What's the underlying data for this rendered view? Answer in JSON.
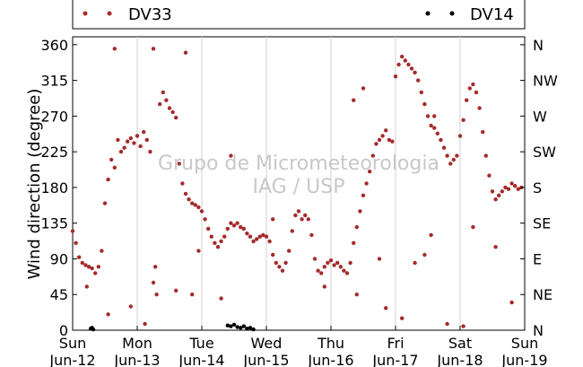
{
  "legend": {
    "placement": "top",
    "entries": [
      {
        "name": "DV33",
        "color": "#a52a2a"
      },
      {
        "name": "DV14",
        "color": "#000000"
      }
    ]
  },
  "watermark": {
    "line1": "Grupo de Micrometeorologia",
    "line2": "IAG / USP"
  },
  "chart_data": {
    "type": "scatter",
    "ylabel": "Wind direction (degree)",
    "ylim": [
      0,
      370
    ],
    "yticks": [
      0,
      45,
      90,
      135,
      180,
      225,
      270,
      315,
      360
    ],
    "right_ticks": [
      {
        "value": 0,
        "label": "N"
      },
      {
        "value": 45,
        "label": "NE"
      },
      {
        "value": 90,
        "label": "E"
      },
      {
        "value": 135,
        "label": "SE"
      },
      {
        "value": 180,
        "label": "S"
      },
      {
        "value": 225,
        "label": "SW"
      },
      {
        "value": 270,
        "label": "W"
      },
      {
        "value": 315,
        "label": "NW"
      },
      {
        "value": 360,
        "label": "N"
      }
    ],
    "xlim": [
      0,
      7
    ],
    "xticks": [
      {
        "value": 0,
        "day": "Sun",
        "date": "Jun-12"
      },
      {
        "value": 1,
        "day": "Mon",
        "date": "Jun-13"
      },
      {
        "value": 2,
        "day": "Tue",
        "date": "Jun-14"
      },
      {
        "value": 3,
        "day": "Wed",
        "date": "Jun-15"
      },
      {
        "value": 4,
        "day": "Thu",
        "date": "Jun-16"
      },
      {
        "value": 5,
        "day": "Fri",
        "date": "Jun-17"
      },
      {
        "value": 6,
        "day": "Sat",
        "date": "Jun-18"
      },
      {
        "value": 7,
        "day": "Sun",
        "date": "Jun-19"
      }
    ],
    "grid": "vertical",
    "series": [
      {
        "name": "DV33",
        "color": "#a52a2a",
        "values": [
          [
            0.0,
            125
          ],
          [
            0.05,
            110
          ],
          [
            0.1,
            92
          ],
          [
            0.15,
            85
          ],
          [
            0.2,
            82
          ],
          [
            0.25,
            80
          ],
          [
            0.3,
            78
          ],
          [
            0.35,
            72
          ],
          [
            0.4,
            80
          ],
          [
            0.45,
            100
          ],
          [
            0.5,
            160
          ],
          [
            0.55,
            190
          ],
          [
            0.6,
            215
          ],
          [
            0.65,
            205
          ],
          [
            0.7,
            240
          ],
          [
            0.75,
            225
          ],
          [
            0.8,
            230
          ],
          [
            0.85,
            238
          ],
          [
            0.9,
            242
          ],
          [
            0.95,
            236
          ],
          [
            1.0,
            245
          ],
          [
            1.05,
            232
          ],
          [
            1.1,
            250
          ],
          [
            1.15,
            240
          ],
          [
            1.2,
            225
          ],
          [
            1.25,
            60
          ],
          [
            1.3,
            45
          ],
          [
            1.35,
            285
          ],
          [
            1.4,
            300
          ],
          [
            1.45,
            290
          ],
          [
            1.5,
            280
          ],
          [
            1.55,
            275
          ],
          [
            1.6,
            268
          ],
          [
            1.65,
            210
          ],
          [
            1.7,
            185
          ],
          [
            1.75,
            172
          ],
          [
            1.8,
            165
          ],
          [
            1.85,
            160
          ],
          [
            1.9,
            158
          ],
          [
            1.95,
            155
          ],
          [
            2.0,
            150
          ],
          [
            2.05,
            140
          ],
          [
            2.1,
            128
          ],
          [
            2.15,
            118
          ],
          [
            2.2,
            110
          ],
          [
            2.25,
            105
          ],
          [
            2.3,
            112
          ],
          [
            2.35,
            118
          ],
          [
            2.4,
            128
          ],
          [
            2.45,
            135
          ],
          [
            2.5,
            132
          ],
          [
            2.55,
            135
          ],
          [
            2.6,
            130
          ],
          [
            2.65,
            128
          ],
          [
            2.7,
            122
          ],
          [
            2.75,
            118
          ],
          [
            2.8,
            112
          ],
          [
            2.85,
            115
          ],
          [
            2.9,
            118
          ],
          [
            2.95,
            120
          ],
          [
            3.0,
            118
          ],
          [
            3.05,
            112
          ],
          [
            3.1,
            95
          ],
          [
            3.15,
            85
          ],
          [
            3.2,
            80
          ],
          [
            3.25,
            75
          ],
          [
            3.3,
            85
          ],
          [
            3.35,
            100
          ],
          [
            3.4,
            125
          ],
          [
            3.45,
            145
          ],
          [
            3.5,
            150
          ],
          [
            3.55,
            140
          ],
          [
            3.6,
            145
          ],
          [
            3.65,
            140
          ],
          [
            3.7,
            120
          ],
          [
            3.75,
            90
          ],
          [
            3.8,
            75
          ],
          [
            3.85,
            72
          ],
          [
            3.9,
            80
          ],
          [
            3.95,
            85
          ],
          [
            4.0,
            88
          ],
          [
            4.05,
            82
          ],
          [
            4.1,
            85
          ],
          [
            4.15,
            80
          ],
          [
            4.2,
            75
          ],
          [
            4.25,
            72
          ],
          [
            4.3,
            85
          ],
          [
            4.35,
            110
          ],
          [
            4.4,
            130
          ],
          [
            4.45,
            150
          ],
          [
            4.5,
            170
          ],
          [
            4.55,
            185
          ],
          [
            4.6,
            200
          ],
          [
            4.65,
            220
          ],
          [
            4.7,
            235
          ],
          [
            4.75,
            240
          ],
          [
            4.8,
            245
          ],
          [
            4.85,
            252
          ],
          [
            4.9,
            240
          ],
          [
            4.95,
            238
          ],
          [
            5.0,
            320
          ],
          [
            5.05,
            335
          ],
          [
            5.1,
            345
          ],
          [
            5.15,
            340
          ],
          [
            5.2,
            335
          ],
          [
            5.25,
            330
          ],
          [
            5.3,
            325
          ],
          [
            5.35,
            315
          ],
          [
            5.4,
            300
          ],
          [
            5.45,
            285
          ],
          [
            5.5,
            270
          ],
          [
            5.55,
            258
          ],
          [
            5.6,
            255
          ],
          [
            5.65,
            248
          ],
          [
            5.7,
            240
          ],
          [
            5.75,
            230
          ],
          [
            5.8,
            220
          ],
          [
            5.85,
            210
          ],
          [
            5.9,
            215
          ],
          [
            5.95,
            220
          ],
          [
            6.0,
            245
          ],
          [
            6.05,
            265
          ],
          [
            6.1,
            290
          ],
          [
            6.15,
            305
          ],
          [
            6.2,
            310
          ],
          [
            6.25,
            300
          ],
          [
            6.3,
            280
          ],
          [
            6.35,
            250
          ],
          [
            6.4,
            220
          ],
          [
            6.45,
            195
          ],
          [
            6.5,
            175
          ],
          [
            6.55,
            165
          ],
          [
            6.6,
            170
          ],
          [
            6.65,
            175
          ],
          [
            6.7,
            180
          ],
          [
            6.75,
            178
          ],
          [
            6.8,
            185
          ],
          [
            6.85,
            182
          ],
          [
            6.9,
            178
          ],
          [
            6.95,
            180
          ],
          [
            0.22,
            55
          ],
          [
            0.55,
            20
          ],
          [
            0.9,
            30
          ],
          [
            1.12,
            8
          ],
          [
            1.28,
            80
          ],
          [
            1.6,
            50
          ],
          [
            1.85,
            45
          ],
          [
            1.95,
            100
          ],
          [
            2.3,
            40
          ],
          [
            2.45,
            220
          ],
          [
            3.1,
            140
          ],
          [
            3.9,
            55
          ],
          [
            4.4,
            45
          ],
          [
            4.75,
            90
          ],
          [
            4.85,
            28
          ],
          [
            5.1,
            15
          ],
          [
            5.3,
            85
          ],
          [
            5.45,
            95
          ],
          [
            5.55,
            120
          ],
          [
            5.8,
            8
          ],
          [
            6.05,
            5
          ],
          [
            6.2,
            130
          ],
          [
            6.55,
            105
          ],
          [
            6.8,
            35
          ],
          [
            0.65,
            355
          ],
          [
            1.25,
            355
          ],
          [
            1.75,
            350
          ],
          [
            4.35,
            290
          ],
          [
            4.5,
            305
          ],
          [
            5.6,
            270
          ]
        ]
      },
      {
        "name": "DV14",
        "color": "#000000",
        "values": [
          [
            0.28,
            2
          ],
          [
            0.3,
            3
          ],
          [
            0.32,
            1
          ],
          [
            2.4,
            6
          ],
          [
            2.45,
            5
          ],
          [
            2.5,
            7
          ],
          [
            2.55,
            4
          ],
          [
            2.6,
            3
          ],
          [
            2.65,
            5
          ],
          [
            2.7,
            2
          ],
          [
            2.75,
            3
          ],
          [
            2.8,
            1
          ]
        ]
      }
    ]
  }
}
